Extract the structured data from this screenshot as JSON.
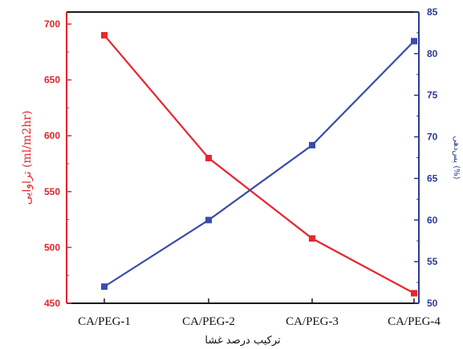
{
  "chart_data": {
    "type": "line",
    "categories": [
      "CA/PEG-1",
      "CA/PEG-2",
      "CA/PEG-3",
      "CA/PEG-4"
    ],
    "xlabel": "ترکیب درصد غشا",
    "ylabel_left": "تراوایی (ml/m2hr)",
    "ylabel_right": "پس‌دهی (%)",
    "ylim_left": [
      450,
      700
    ],
    "ylim_right": [
      50,
      85
    ],
    "yticks_left": [
      450,
      500,
      550,
      600,
      650,
      700
    ],
    "yticks_right": [
      50,
      55,
      60,
      65,
      70,
      75,
      80,
      85
    ],
    "series": [
      {
        "axis": "left",
        "color": "#e8262d",
        "values": [
          690,
          580,
          508,
          459
        ]
      },
      {
        "axis": "right",
        "color": "#3a4bab",
        "values": [
          52,
          60,
          69,
          81.5
        ]
      }
    ],
    "grid": false
  }
}
